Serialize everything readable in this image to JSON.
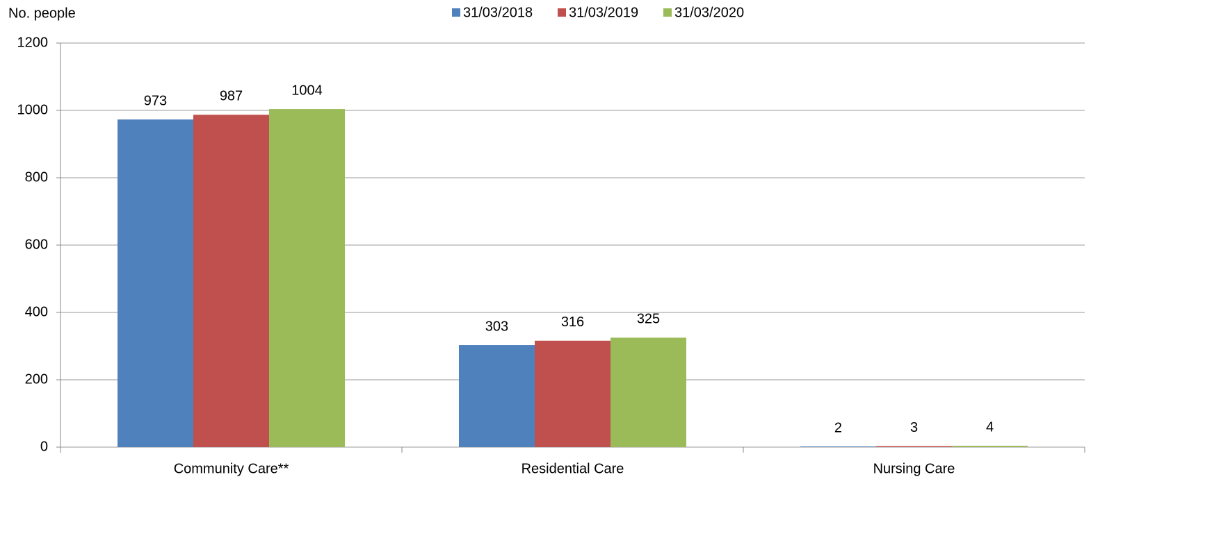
{
  "chart_data": {
    "type": "bar",
    "y_label": "No. people",
    "categories": [
      "Community Care**",
      "Residential Care",
      "Nursing Care"
    ],
    "series": [
      {
        "name": "31/03/2018",
        "color": "#4f81bd",
        "values": [
          973,
          303,
          2
        ]
      },
      {
        "name": "31/03/2019",
        "color": "#c0504d",
        "values": [
          987,
          316,
          3
        ]
      },
      {
        "name": "31/03/2020",
        "color": "#9bbb59",
        "values": [
          1004,
          325,
          4
        ]
      }
    ],
    "ylim": [
      0,
      1200
    ],
    "yticks": [
      0,
      200,
      400,
      600,
      800,
      1000,
      1200
    ],
    "grid": true,
    "legend": "top"
  }
}
